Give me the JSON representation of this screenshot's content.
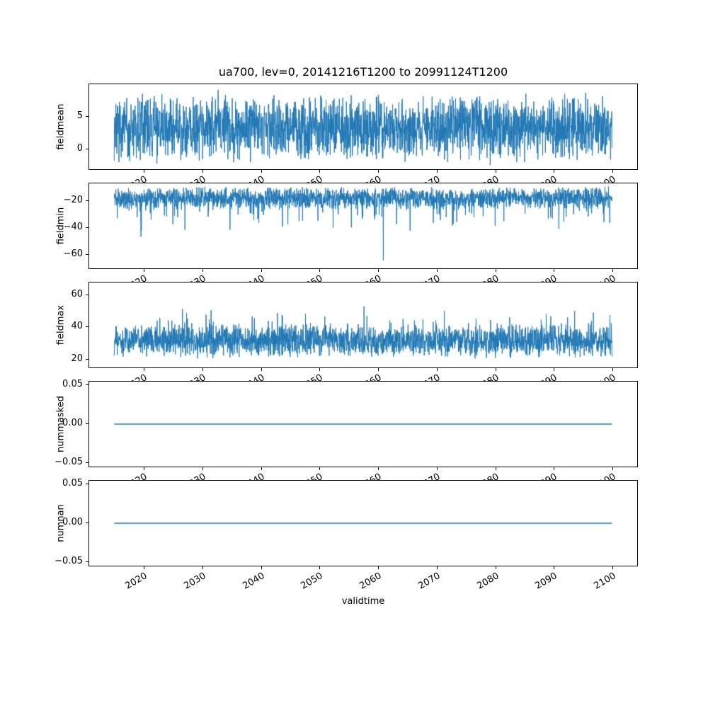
{
  "figure": {
    "title": "ua700, lev=0, 20141216T1200 to 20991124T1200",
    "xlabel": "validtime",
    "background": "#ffffff",
    "line_color": "#1f77b4",
    "axis_color": "#000000",
    "xlim": [
      2010.7,
      2104.2
    ],
    "x_data_range": [
      2014.96,
      2099.9
    ],
    "xticks": [
      {
        "v": 2020,
        "label": "2020"
      },
      {
        "v": 2030,
        "label": "2030"
      },
      {
        "v": 2040,
        "label": "2040"
      },
      {
        "v": 2050,
        "label": "2050"
      },
      {
        "v": 2060,
        "label": "2060"
      },
      {
        "v": 2070,
        "label": "2070"
      },
      {
        "v": 2080,
        "label": "2080"
      },
      {
        "v": 2090,
        "label": "2090"
      },
      {
        "v": 2100,
        "label": "2100"
      }
    ]
  },
  "chart_data": [
    {
      "type": "line",
      "name": "fieldmean",
      "ylabel": "fieldmean",
      "ylim": [
        -3,
        10
      ],
      "yticks": [
        {
          "v": 0,
          "label": "0"
        },
        {
          "v": 5,
          "label": "5"
        }
      ],
      "approx_value_range": [
        -2.4,
        9.7
      ],
      "gen": {
        "seed": 7,
        "n": 2400,
        "base": 3.4,
        "amp": 5.5,
        "spikes": [
          {
            "prob": 0.012,
            "amp": 2.3
          },
          {
            "prob": 0.012,
            "amp": -2.0
          }
        ],
        "clamp": [
          -2.4,
          9.7
        ]
      }
    },
    {
      "type": "line",
      "name": "fieldmin",
      "ylabel": "fieldmin",
      "ylim": [
        -70,
        -7
      ],
      "yticks": [
        {
          "v": -20,
          "label": "−20"
        },
        {
          "v": -40,
          "label": "−40"
        },
        {
          "v": -60,
          "label": "−60"
        }
      ],
      "approx_value_range": [
        -67,
        -9
      ],
      "gen": {
        "seed": 11,
        "n": 2400,
        "base": -18,
        "amp": 9,
        "spikes": [
          {
            "prob": 0.06,
            "amp": -18
          },
          {
            "prob": 0.008,
            "amp": -30
          }
        ],
        "clamp": [
          -67,
          -9
        ]
      }
    },
    {
      "type": "line",
      "name": "fieldmax",
      "ylabel": "fieldmax",
      "ylim": [
        15,
        68
      ],
      "yticks": [
        {
          "v": 20,
          "label": "20"
        },
        {
          "v": 40,
          "label": "40"
        },
        {
          "v": 60,
          "label": "60"
        }
      ],
      "approx_value_range": [
        17.5,
        66
      ],
      "gen": {
        "seed": 23,
        "n": 2400,
        "base": 31.5,
        "amp": 11,
        "spikes": [
          {
            "prob": 0.05,
            "amp": 14
          },
          {
            "prob": 0.006,
            "amp": 20
          }
        ],
        "clamp": [
          17.5,
          66
        ]
      }
    },
    {
      "type": "line",
      "name": "nummasked",
      "ylabel": "nummasked",
      "ylim": [
        -0.055,
        0.055
      ],
      "yticks": [
        {
          "v": 0.05,
          "label": "0.05"
        },
        {
          "v": 0,
          "label": "0.00"
        },
        {
          "v": -0.05,
          "label": "−0.05"
        }
      ],
      "flat": 0.0
    },
    {
      "type": "line",
      "name": "numnan",
      "ylabel": "numnan",
      "ylim": [
        -0.055,
        0.055
      ],
      "yticks": [
        {
          "v": 0.05,
          "label": "0.05"
        },
        {
          "v": 0,
          "label": "0.00"
        },
        {
          "v": -0.05,
          "label": "−0.05"
        }
      ],
      "flat": 0.0
    }
  ]
}
